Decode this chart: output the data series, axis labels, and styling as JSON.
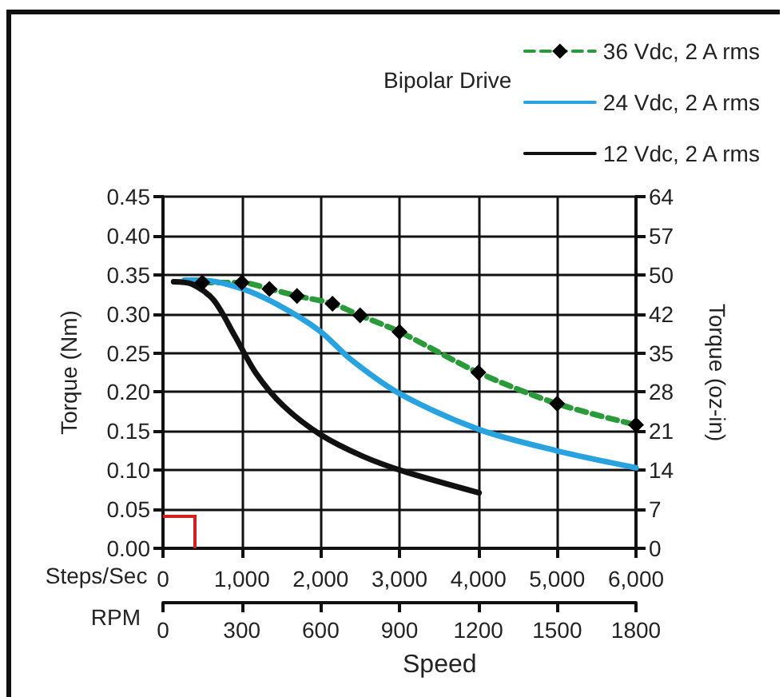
{
  "chart_data": {
    "type": "line",
    "title": "Bipolar Drive",
    "xlabel": "Steps/Sec",
    "x2label": "RPM",
    "ylabel": "Torque (Nm)",
    "y2label": "Torque (oz-in)",
    "annotations": [
      "Speed"
    ],
    "xlim": [
      0,
      6000
    ],
    "xticks": [
      0,
      {
        "value": 1000,
        "label": "1,000"
      },
      {
        "value": 2000,
        "label": "2,000"
      },
      {
        "value": 3000,
        "label": "3,000"
      },
      {
        "value": 4000,
        "label": "4,000"
      },
      {
        "value": 5000,
        "label": "5,000"
      },
      {
        "value": 6000,
        "label": "6,000"
      }
    ],
    "x2lim": [
      0,
      1800
    ],
    "x2ticks": [
      0,
      300,
      600,
      900,
      1200,
      1500,
      1800
    ],
    "ylim": [
      0,
      0.45
    ],
    "yticks": [
      {
        "value": 0,
        "label": "0.00"
      },
      0.05,
      {
        "value": 0.1,
        "label": "0.10"
      },
      0.15,
      {
        "value": 0.2,
        "label": "0.20"
      },
      0.25,
      {
        "value": 0.3,
        "label": "0.30"
      },
      0.35,
      {
        "value": 0.4,
        "label": "0.40"
      },
      0.45
    ],
    "y2lim": [
      0,
      63.73
    ],
    "y2ticks": [
      0,
      {
        "value": 7.08,
        "label": "7"
      },
      {
        "value": 14.16,
        "label": "14"
      },
      {
        "value": 21.24,
        "label": "21"
      },
      {
        "value": 28.32,
        "label": "28"
      },
      {
        "value": 35.4,
        "label": "35"
      },
      {
        "value": 42.48,
        "label": "42"
      },
      {
        "value": 49.57,
        "label": "50"
      },
      {
        "value": 56.65,
        "label": "57"
      },
      {
        "value": 63.73,
        "label": "64"
      }
    ],
    "grid": true,
    "legend": "top right",
    "series": [
      {
        "name": "36 Vdc, 2 A rms",
        "color": "#2a9a3a",
        "line_style": "dashed",
        "marker": "diamond",
        "x": [
          500,
          1000,
          1350,
          1700,
          2150,
          2500,
          3000,
          4000,
          5000,
          6000
        ],
        "values": [
          0.34,
          0.34,
          0.332,
          0.323,
          0.313,
          0.298,
          0.277,
          0.225,
          0.185,
          0.158
        ]
      },
      {
        "name": "24 Vdc, 2 A rms",
        "color": "#29a3e0",
        "line_style": "solid",
        "marker": "none",
        "x": [
          270,
          500,
          980,
          1450,
          1990,
          2390,
          3000,
          4010,
          4990,
          6000
        ],
        "values": [
          0.343,
          0.343,
          0.333,
          0.312,
          0.278,
          0.241,
          0.198,
          0.152,
          0.125,
          0.103
        ]
      },
      {
        "name": "12 Vdc, 2 A rms",
        "color": "#111111",
        "line_style": "solid",
        "marker": "none",
        "x": [
          135,
          370,
          640,
          910,
          1180,
          1520,
          1990,
          2530,
          3070,
          4010
        ],
        "values": [
          0.341,
          0.338,
          0.318,
          0.272,
          0.224,
          0.183,
          0.146,
          0.118,
          0.098,
          0.071
        ]
      }
    ]
  }
}
